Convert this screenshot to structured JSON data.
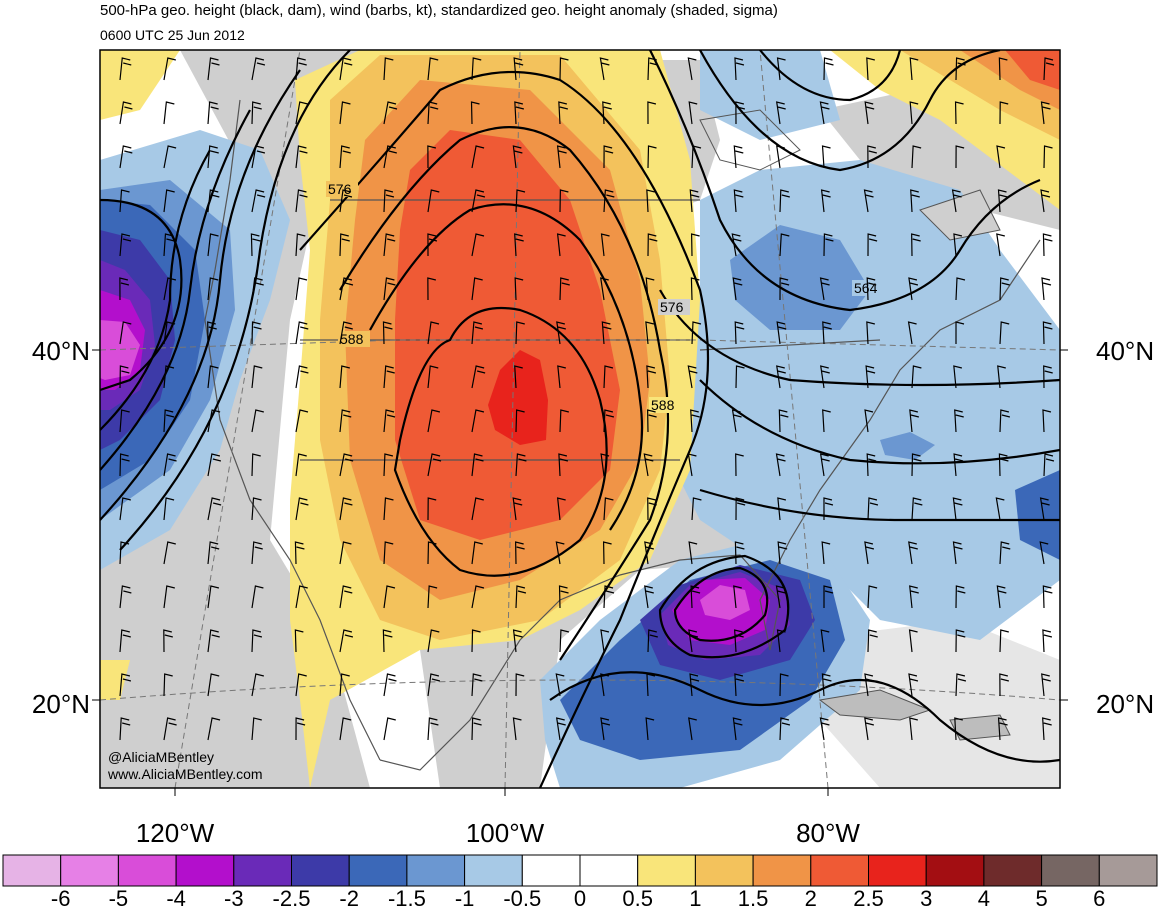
{
  "header": {
    "title": "500-hPa geo. height (black, dam), wind (barbs, kt), standardized geo. height anomaly (shaded, sigma)",
    "valid_time": "0600 UTC 25 Jun 2012"
  },
  "map": {
    "lat_labels": {
      "left_40": "40°N",
      "right_40": "40°N",
      "left_20": "20°N",
      "right_20": "20°N"
    },
    "lon_labels": [
      "120°W",
      "100°W",
      "80°W"
    ],
    "contour_labels": [
      "576",
      "588",
      "564",
      "576",
      "588"
    ],
    "credits": [
      "@AliciaMBentley",
      "www.AliciaMBentley.com"
    ]
  },
  "colorbar": {
    "labels": [
      "-6",
      "-5",
      "-4",
      "-3",
      "-2.5",
      "-2",
      "-1.5",
      "-1",
      "-0.5",
      "0",
      "0.5",
      "1",
      "1.5",
      "2",
      "2.5",
      "3",
      "4",
      "5",
      "6"
    ],
    "colors": [
      "#e6b3e6",
      "#e680e6",
      "#d94dd9",
      "#b30fcc",
      "#6a2ab8",
      "#3d3aa8",
      "#3b68b8",
      "#6b97d1",
      "#a7c9e6",
      "#ffffff",
      "#ffffff",
      "#f9e57a",
      "#f3c25c",
      "#f09447",
      "#ef5a35",
      "#e8231c",
      "#a30e12",
      "#6e2b2b",
      "#766663",
      "#a69a98"
    ]
  }
}
